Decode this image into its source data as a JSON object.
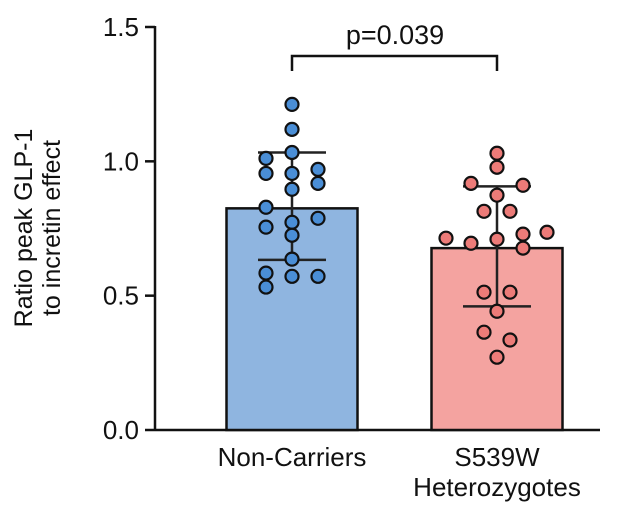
{
  "chart_data": {
    "type": "bar",
    "ylabel": [
      "Ratio peak GLP-1",
      "to incretin effect"
    ],
    "ylim": [
      0,
      1.5
    ],
    "yticks": [
      "0.0",
      "0.5",
      "1.0",
      "1.5"
    ],
    "ytick_values": [
      0,
      0.5,
      1.0,
      1.5
    ],
    "grid": false,
    "categories": [
      {
        "label": [
          "Non-Carriers"
        ]
      },
      {
        "label": [
          "S539W",
          "Heterozygotes"
        ]
      }
    ],
    "series": [
      {
        "values": [
          0.825,
          0.677
        ],
        "error_upper": [
          1.033,
          0.907
        ],
        "error_lower": [
          0.633,
          0.46
        ],
        "colors": [
          "#8fb5e0",
          "#f4a3a0"
        ],
        "point_colors": [
          "#4a8ed6",
          "#ec7b78"
        ],
        "points": [
          [
            1.212,
            1.119,
            1.033,
            1.011,
            0.97,
            0.955,
            0.955,
            0.918,
            0.896,
            0.829,
            0.788,
            0.773,
            0.755,
            0.725,
            0.636,
            0.584,
            0.572,
            0.572,
            0.532
          ],
          [
            1.03,
            0.978,
            0.918,
            0.911,
            0.874,
            0.814,
            0.814,
            0.736,
            0.729,
            0.714,
            0.71,
            0.695,
            0.677,
            0.513,
            0.513,
            0.442,
            0.364,
            0.335,
            0.271
          ]
        ]
      }
    ],
    "annotation": "p=0.039"
  }
}
